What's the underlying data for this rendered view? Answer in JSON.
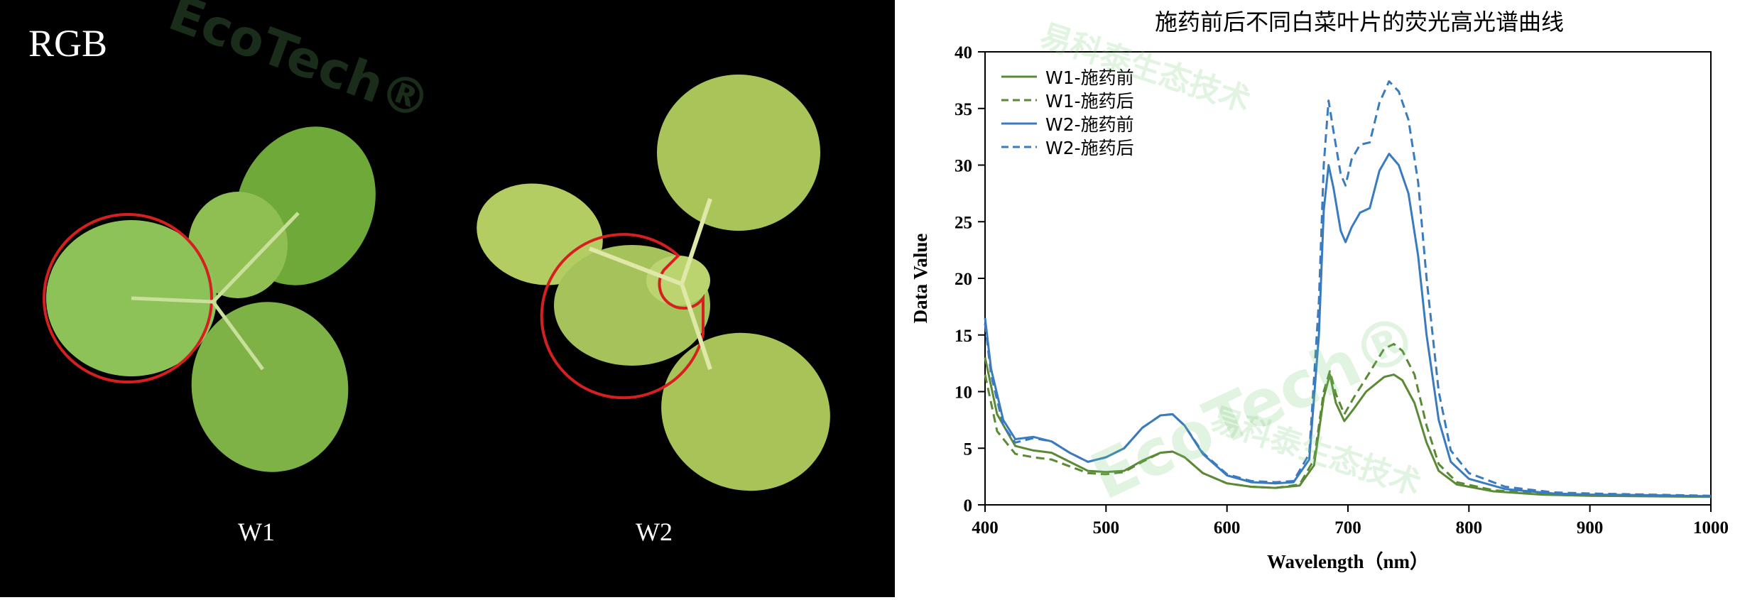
{
  "photo": {
    "rgb_label": "RGB",
    "plants": [
      "W1",
      "W2"
    ]
  },
  "watermark": {
    "logo": "EcoTech®",
    "text": "易科泰生态技术"
  },
  "chart_data": {
    "type": "line",
    "title": "施药前后不同白菜叶片的荧光高光谱曲线",
    "xlabel": "Wavelength（nm）",
    "ylabel": "Data Value",
    "xlim": [
      400,
      1000
    ],
    "ylim": [
      0,
      40
    ],
    "xticks": [
      400,
      500,
      600,
      700,
      800,
      900,
      1000
    ],
    "yticks": [
      0,
      5,
      10,
      15,
      20,
      25,
      30,
      35,
      40
    ],
    "grid": false,
    "legend_position": "top-left",
    "series": [
      {
        "name": "W1-施药前",
        "color": "#5a8a35",
        "dash": false,
        "points": [
          [
            400,
            13
          ],
          [
            410,
            8
          ],
          [
            425,
            5.2
          ],
          [
            440,
            4.8
          ],
          [
            455,
            4.6
          ],
          [
            470,
            3.8
          ],
          [
            485,
            3.0
          ],
          [
            500,
            2.9
          ],
          [
            515,
            3.0
          ],
          [
            530,
            3.9
          ],
          [
            545,
            4.6
          ],
          [
            555,
            4.7
          ],
          [
            565,
            4.2
          ],
          [
            580,
            2.8
          ],
          [
            600,
            1.9
          ],
          [
            620,
            1.6
          ],
          [
            640,
            1.5
          ],
          [
            660,
            1.7
          ],
          [
            672,
            3.5
          ],
          [
            680,
            9.5
          ],
          [
            685,
            11.5
          ],
          [
            690,
            9.0
          ],
          [
            697,
            7.4
          ],
          [
            705,
            8.5
          ],
          [
            715,
            10.0
          ],
          [
            730,
            11.3
          ],
          [
            738,
            11.5
          ],
          [
            745,
            11.0
          ],
          [
            755,
            9.0
          ],
          [
            765,
            5.5
          ],
          [
            775,
            3.0
          ],
          [
            790,
            1.8
          ],
          [
            820,
            1.2
          ],
          [
            860,
            0.9
          ],
          [
            900,
            0.8
          ],
          [
            950,
            0.75
          ],
          [
            1000,
            0.7
          ]
        ]
      },
      {
        "name": "W1-施药后",
        "color": "#5a8a35",
        "dash": true,
        "points": [
          [
            400,
            11.5
          ],
          [
            410,
            6.5
          ],
          [
            425,
            4.5
          ],
          [
            440,
            4.2
          ],
          [
            455,
            4.0
          ],
          [
            470,
            3.4
          ],
          [
            485,
            2.8
          ],
          [
            500,
            2.7
          ],
          [
            515,
            2.9
          ],
          [
            530,
            3.8
          ],
          [
            545,
            4.6
          ],
          [
            555,
            4.7
          ],
          [
            565,
            4.2
          ],
          [
            580,
            2.8
          ],
          [
            600,
            1.9
          ],
          [
            620,
            1.6
          ],
          [
            640,
            1.5
          ],
          [
            660,
            1.8
          ],
          [
            672,
            4.0
          ],
          [
            680,
            10.0
          ],
          [
            685,
            11.8
          ],
          [
            690,
            9.8
          ],
          [
            697,
            8.0
          ],
          [
            705,
            9.5
          ],
          [
            715,
            11.2
          ],
          [
            730,
            13.8
          ],
          [
            738,
            14.2
          ],
          [
            745,
            13.6
          ],
          [
            755,
            11.5
          ],
          [
            765,
            7.0
          ],
          [
            775,
            3.6
          ],
          [
            790,
            2.0
          ],
          [
            820,
            1.3
          ],
          [
            860,
            0.95
          ],
          [
            900,
            0.85
          ],
          [
            950,
            0.8
          ],
          [
            1000,
            0.75
          ]
        ]
      },
      {
        "name": "W2-施药前",
        "color": "#3a7bbf",
        "dash": false,
        "points": [
          [
            400,
            16.5
          ],
          [
            405,
            12
          ],
          [
            415,
            7.5
          ],
          [
            425,
            5.8
          ],
          [
            440,
            6.0
          ],
          [
            455,
            5.6
          ],
          [
            470,
            4.6
          ],
          [
            485,
            3.8
          ],
          [
            500,
            4.2
          ],
          [
            515,
            5.0
          ],
          [
            530,
            6.8
          ],
          [
            545,
            7.9
          ],
          [
            555,
            8.0
          ],
          [
            565,
            7.0
          ],
          [
            580,
            4.5
          ],
          [
            600,
            2.6
          ],
          [
            620,
            2.0
          ],
          [
            640,
            1.9
          ],
          [
            655,
            2.0
          ],
          [
            668,
            4.0
          ],
          [
            676,
            15
          ],
          [
            680,
            26
          ],
          [
            684,
            30.0
          ],
          [
            688,
            28
          ],
          [
            694,
            24.2
          ],
          [
            698,
            23.2
          ],
          [
            703,
            24.5
          ],
          [
            710,
            25.8
          ],
          [
            718,
            26.2
          ],
          [
            726,
            29.5
          ],
          [
            734,
            31.0
          ],
          [
            742,
            30.0
          ],
          [
            750,
            27.5
          ],
          [
            758,
            22
          ],
          [
            765,
            15
          ],
          [
            775,
            7.5
          ],
          [
            785,
            3.8
          ],
          [
            800,
            2.3
          ],
          [
            830,
            1.4
          ],
          [
            870,
            1.0
          ],
          [
            900,
            0.9
          ],
          [
            950,
            0.85
          ],
          [
            1000,
            0.75
          ]
        ]
      },
      {
        "name": "W2-施药后",
        "color": "#3a7bbf",
        "dash": true,
        "points": [
          [
            400,
            16.0
          ],
          [
            405,
            11.5
          ],
          [
            415,
            7.0
          ],
          [
            425,
            5.5
          ],
          [
            440,
            5.9
          ],
          [
            455,
            5.6
          ],
          [
            470,
            4.6
          ],
          [
            485,
            3.8
          ],
          [
            500,
            4.2
          ],
          [
            515,
            5.0
          ],
          [
            530,
            6.8
          ],
          [
            545,
            7.9
          ],
          [
            555,
            8.0
          ],
          [
            565,
            7.0
          ],
          [
            580,
            4.6
          ],
          [
            600,
            2.7
          ],
          [
            620,
            2.1
          ],
          [
            640,
            2.0
          ],
          [
            655,
            2.1
          ],
          [
            668,
            4.5
          ],
          [
            676,
            18
          ],
          [
            680,
            30
          ],
          [
            684,
            35.7
          ],
          [
            688,
            33
          ],
          [
            694,
            29.2
          ],
          [
            698,
            28.2
          ],
          [
            703,
            30.5
          ],
          [
            710,
            31.8
          ],
          [
            718,
            32.0
          ],
          [
            726,
            35.5
          ],
          [
            734,
            37.4
          ],
          [
            742,
            36.5
          ],
          [
            750,
            34.0
          ],
          [
            758,
            28.5
          ],
          [
            765,
            20
          ],
          [
            775,
            10
          ],
          [
            785,
            4.8
          ],
          [
            800,
            2.8
          ],
          [
            830,
            1.6
          ],
          [
            870,
            1.1
          ],
          [
            900,
            1.0
          ],
          [
            950,
            0.9
          ],
          [
            1000,
            0.8
          ]
        ]
      }
    ]
  }
}
